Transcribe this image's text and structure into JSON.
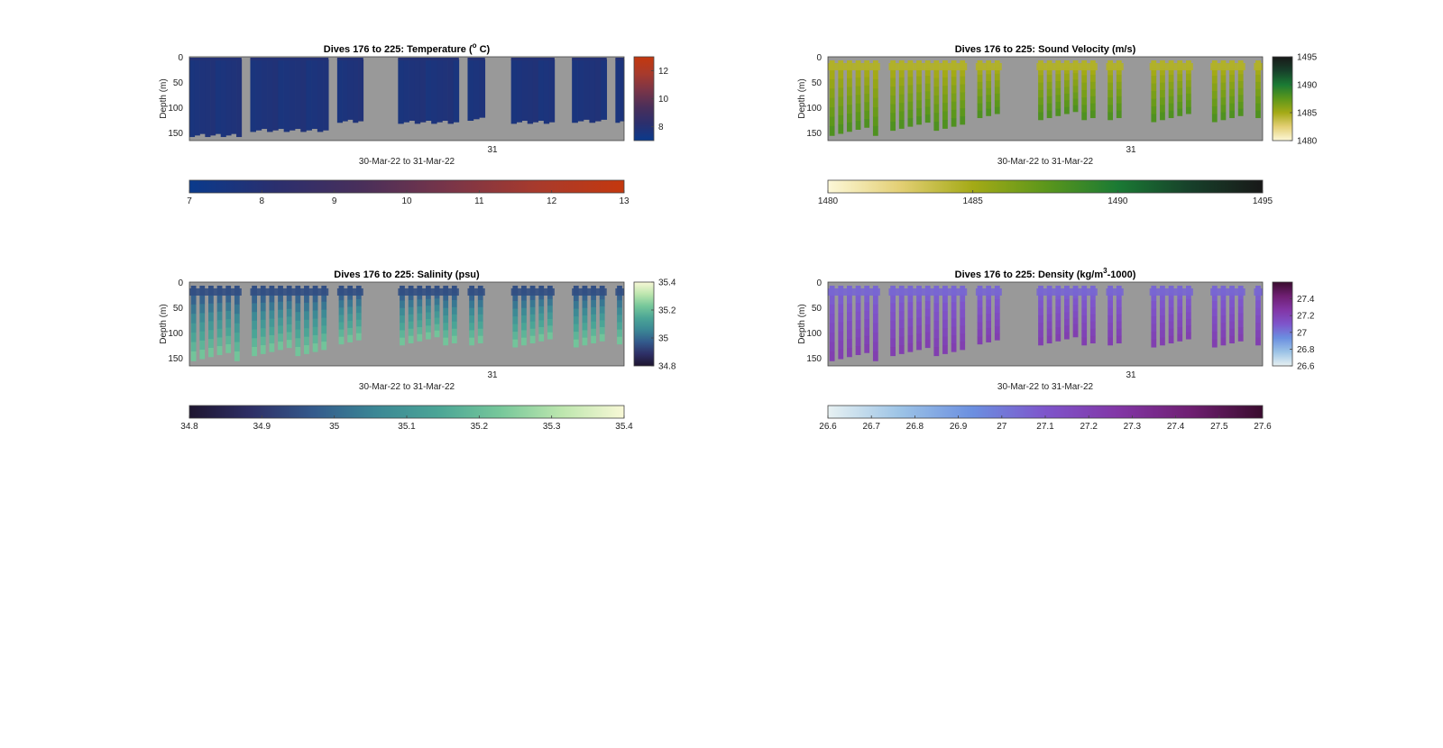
{
  "figure": {
    "background": "#ffffff",
    "nodata_color": "#999999"
  },
  "chart_data": [
    {
      "id": "temperature",
      "type": "heatmap",
      "title_prefix": "Dives 176 to 225: Temperature (",
      "title_sup": "o",
      "title_suffix": " C)",
      "ylabel": "Depth (m)",
      "xlabel": "30-Mar-22 to 31-Mar-22",
      "x_tick_labels": [
        "31"
      ],
      "y_tick_labels": [
        "0",
        "50",
        "100",
        "150"
      ],
      "ylim": [
        0,
        165
      ],
      "y_reversed": true,
      "colormap": [
        "#0a3a8c",
        "#2b2f6e",
        "#4a2f5a",
        "#7a3548",
        "#a83a2c",
        "#c4380e"
      ],
      "clim": [
        7,
        13
      ],
      "side_colorbar_ticks": [
        "8",
        "10",
        "12"
      ],
      "side_colorbar_tick_values": [
        8,
        10,
        12
      ],
      "bottom_colorbar_ticks": [
        "7",
        "8",
        "9",
        "10",
        "11",
        "12",
        "13"
      ],
      "value_range": [
        7.6,
        7.9
      ],
      "profile_start_values": [
        7.75,
        7.7,
        7.7
      ],
      "dives": [
        {
          "x_start": 0.0,
          "x_end": 0.12,
          "max_depth": 158
        },
        {
          "x_start": 0.14,
          "x_end": 0.32,
          "max_depth": 148
        },
        {
          "x_start": 0.34,
          "x_end": 0.4,
          "max_depth": 130
        },
        {
          "x_start": 0.48,
          "x_end": 0.62,
          "max_depth": 132
        },
        {
          "x_start": 0.64,
          "x_end": 0.68,
          "max_depth": 126
        },
        {
          "x_start": 0.74,
          "x_end": 0.84,
          "max_depth": 132
        },
        {
          "x_start": 0.88,
          "x_end": 0.96,
          "max_depth": 130
        },
        {
          "x_start": 0.98,
          "x_end": 1.0,
          "max_depth": 130
        }
      ],
      "profile_style": "solid"
    },
    {
      "id": "sound_velocity",
      "type": "heatmap",
      "title_prefix": "Dives 176 to 225: Sound Velocity (m/s)",
      "title_sup": "",
      "title_suffix": "",
      "ylabel": "Depth (m)",
      "xlabel": "30-Mar-22 to 31-Mar-22",
      "x_tick_labels": [
        "31"
      ],
      "y_tick_labels": [
        "0",
        "50",
        "100",
        "150"
      ],
      "ylim": [
        0,
        165
      ],
      "y_reversed": true,
      "colormap": [
        "#fdf8d8",
        "#e3cf74",
        "#a4aa16",
        "#5c971b",
        "#1a7a34",
        "#17402a",
        "#181818"
      ],
      "clim": [
        1480,
        1495
      ],
      "side_colorbar_ticks": [
        "1480",
        "1485",
        "1490",
        "1495"
      ],
      "side_colorbar_tick_values": [
        1480,
        1485,
        1490,
        1495
      ],
      "bottom_colorbar_ticks": [
        "1480",
        "1485",
        "1490",
        "1495"
      ],
      "value_range": [
        1484.5,
        1488
      ],
      "dives": [
        {
          "x_start": 0.0,
          "x_end": 0.12,
          "max_depth": 155
        },
        {
          "x_start": 0.14,
          "x_end": 0.32,
          "max_depth": 145
        },
        {
          "x_start": 0.34,
          "x_end": 0.4,
          "max_depth": 120
        },
        {
          "x_start": 0.48,
          "x_end": 0.62,
          "max_depth": 124
        },
        {
          "x_start": 0.64,
          "x_end": 0.68,
          "max_depth": 124
        },
        {
          "x_start": 0.74,
          "x_end": 0.84,
          "max_depth": 128
        },
        {
          "x_start": 0.88,
          "x_end": 0.96,
          "max_depth": 128
        },
        {
          "x_start": 0.98,
          "x_end": 1.0,
          "max_depth": 120
        }
      ],
      "profile_style": "bars"
    },
    {
      "id": "salinity",
      "type": "heatmap",
      "title_prefix": "Dives 176 to 225: Salinity (psu)",
      "title_sup": "",
      "title_suffix": "",
      "ylabel": "Depth (m)",
      "xlabel": "30-Mar-22 to 31-Mar-22",
      "x_tick_labels": [
        "31"
      ],
      "y_tick_labels": [
        "0",
        "50",
        "100",
        "150"
      ],
      "ylim": [
        0,
        165
      ],
      "y_reversed": true,
      "colormap": [
        "#1e1530",
        "#2e2f66",
        "#335a8c",
        "#3b8795",
        "#4ba596",
        "#76c79a",
        "#bde6ae",
        "#f8f8d6"
      ],
      "clim": [
        34.8,
        35.4
      ],
      "side_colorbar_ticks": [
        "34.8",
        "35",
        "35.2",
        "35.4"
      ],
      "side_colorbar_tick_values": [
        34.8,
        35.0,
        35.2,
        35.4
      ],
      "bottom_colorbar_ticks": [
        "34.8",
        "34.9",
        "35",
        "35.1",
        "35.2",
        "35.3",
        "35.4"
      ],
      "value_range": [
        34.95,
        35.22
      ],
      "dives": [
        {
          "x_start": 0.0,
          "x_end": 0.12,
          "max_depth": 155
        },
        {
          "x_start": 0.14,
          "x_end": 0.32,
          "max_depth": 145
        },
        {
          "x_start": 0.34,
          "x_end": 0.4,
          "max_depth": 122
        },
        {
          "x_start": 0.48,
          "x_end": 0.62,
          "max_depth": 124
        },
        {
          "x_start": 0.64,
          "x_end": 0.68,
          "max_depth": 124
        },
        {
          "x_start": 0.74,
          "x_end": 0.84,
          "max_depth": 128
        },
        {
          "x_start": 0.88,
          "x_end": 0.96,
          "max_depth": 128
        },
        {
          "x_start": 0.98,
          "x_end": 1.0,
          "max_depth": 122
        }
      ],
      "profile_style": "bars"
    },
    {
      "id": "density",
      "type": "heatmap",
      "title_prefix": "Dives 176 to 225: Density (kg/m",
      "title_sup": "3",
      "title_suffix": "-1000)",
      "ylabel": "Depth (m)",
      "xlabel": "30-Mar-22 to 31-Mar-22",
      "x_tick_labels": [
        "31"
      ],
      "y_tick_labels": [
        "0",
        "50",
        "100",
        "150"
      ],
      "ylim": [
        0,
        165
      ],
      "y_reversed": true,
      "colormap": [
        "#e7f1f2",
        "#9cc3e6",
        "#6b8fe0",
        "#7e55cb",
        "#8236a6",
        "#6f1f72",
        "#3a0c2e"
      ],
      "clim": [
        26.6,
        27.6
      ],
      "side_colorbar_ticks": [
        "26.6",
        "26.8",
        "27",
        "27.2",
        "27.4"
      ],
      "side_colorbar_tick_values": [
        26.6,
        26.8,
        27.0,
        27.2,
        27.4
      ],
      "bottom_colorbar_ticks": [
        "26.6",
        "26.7",
        "26.8",
        "26.9",
        "27",
        "27.1",
        "27.2",
        "27.3",
        "27.4",
        "27.5",
        "27.6"
      ],
      "value_range": [
        27.05,
        27.22
      ],
      "dives": [
        {
          "x_start": 0.0,
          "x_end": 0.12,
          "max_depth": 155
        },
        {
          "x_start": 0.14,
          "x_end": 0.32,
          "max_depth": 145
        },
        {
          "x_start": 0.34,
          "x_end": 0.4,
          "max_depth": 122
        },
        {
          "x_start": 0.48,
          "x_end": 0.62,
          "max_depth": 124
        },
        {
          "x_start": 0.64,
          "x_end": 0.68,
          "max_depth": 124
        },
        {
          "x_start": 0.74,
          "x_end": 0.84,
          "max_depth": 128
        },
        {
          "x_start": 0.88,
          "x_end": 0.96,
          "max_depth": 128
        },
        {
          "x_start": 0.98,
          "x_end": 1.0,
          "max_depth": 124
        }
      ],
      "profile_style": "bars"
    }
  ]
}
